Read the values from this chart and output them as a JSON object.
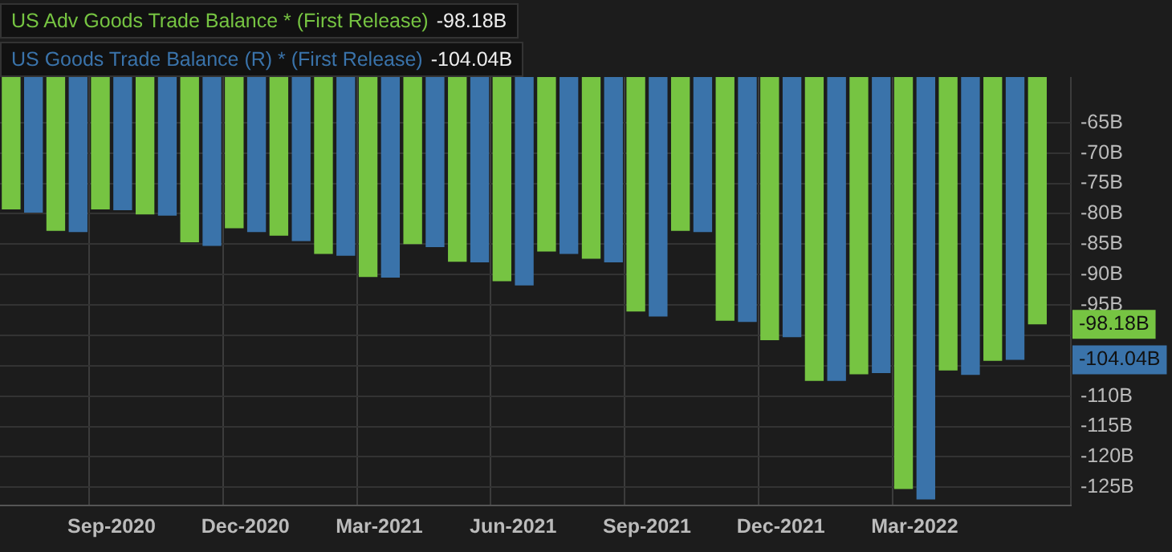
{
  "chart_data": {
    "type": "bar",
    "categories": [
      null,
      null,
      "Sep-2020",
      null,
      null,
      "Dec-2020",
      null,
      null,
      "Mar-2021",
      null,
      null,
      "Jun-2021",
      null,
      null,
      "Sep-2021",
      null,
      null,
      "Dec-2021",
      null,
      null,
      "Mar-2022",
      null,
      null,
      null
    ],
    "series": [
      {
        "name": "US Adv Goods Trade Balance * (First Release)",
        "color": "#76c442",
        "values": [
          -79.3,
          -82.8,
          -79.3,
          -80.1,
          -84.7,
          -82.4,
          -83.6,
          -86.6,
          -90.4,
          -85.0,
          -87.9,
          -91.1,
          -86.2,
          -87.4,
          -96.1,
          -82.8,
          -97.6,
          -100.8,
          -107.5,
          -106.4,
          -125.3,
          -105.8,
          -104.2,
          -98.18
        ]
      },
      {
        "name": "US Goods Trade Balance (R) * (First Release)",
        "color": "#3a73aa",
        "values": [
          -79.8,
          -83.0,
          -79.4,
          -80.3,
          -85.3,
          -83.0,
          -84.5,
          -86.9,
          -90.5,
          -85.5,
          -88.0,
          -91.8,
          -86.6,
          -88.0,
          -96.9,
          -83.0,
          -97.8,
          -100.3,
          -107.5,
          -106.2,
          -127.0,
          -106.5,
          -104.04,
          null
        ]
      }
    ],
    "annotations": [
      "-98.18B",
      "-104.04B"
    ],
    "ylim": [
      -128,
      -57.5
    ],
    "yticks": [
      {
        "value": -65,
        "label": "-65B"
      },
      {
        "value": -70,
        "label": "-70B"
      },
      {
        "value": -75,
        "label": "-75B"
      },
      {
        "value": -80,
        "label": "-80B"
      },
      {
        "value": -85,
        "label": "-85B"
      },
      {
        "value": -90,
        "label": "-90B"
      },
      {
        "value": -95,
        "label": "-95B"
      },
      {
        "value": -100,
        "label": null
      },
      {
        "value": -105,
        "label": null
      },
      {
        "value": -110,
        "label": "-110B"
      },
      {
        "value": -115,
        "label": "-115B"
      },
      {
        "value": -120,
        "label": "-120B"
      },
      {
        "value": -125,
        "label": "-125B"
      }
    ],
    "grid": true,
    "legend": "top left"
  }
}
